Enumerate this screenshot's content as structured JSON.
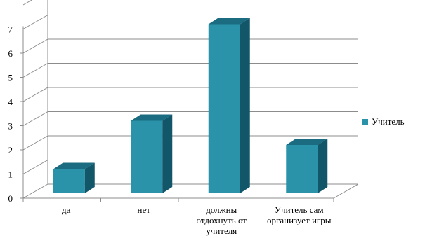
{
  "chart_data": {
    "type": "bar",
    "style": "3d-clustered-column",
    "categories": [
      "да",
      "нет",
      "должны отдохнуть от учителя",
      "Учитель сам организует игры"
    ],
    "category_label_lines": [
      [
        "да"
      ],
      [
        "нет"
      ],
      [
        "должны",
        "отдохнуть от",
        "учителя"
      ],
      [
        "Учитель сам",
        "организует игры"
      ]
    ],
    "series": [
      {
        "name": "Учитель",
        "values": [
          1,
          3,
          7,
          2
        ]
      }
    ],
    "ylim": [
      0,
      7
    ],
    "yticks": [
      "0",
      "1",
      "2",
      "3",
      "4",
      "5",
      "6",
      "7"
    ],
    "grid": true,
    "legend_position": "right",
    "colors": {
      "bar_front": "#2b93a9",
      "bar_top": "#1b6c80",
      "bar_side": "#12566a",
      "grid": "#8c8c8c"
    }
  }
}
